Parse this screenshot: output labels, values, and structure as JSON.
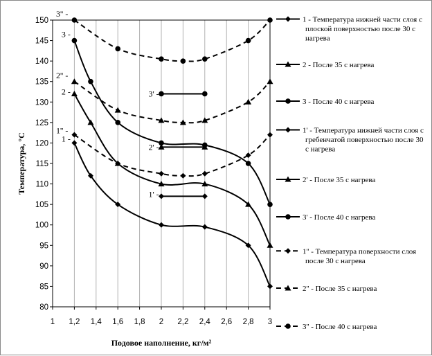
{
  "chart_data": {
    "type": "line",
    "xlabel": "Подовое наполнение, кг/м²",
    "ylabel": "Температура, °С",
    "xlim": [
      1,
      3
    ],
    "ylim": [
      80,
      150
    ],
    "x_ticks": [
      "1",
      "1,2",
      "1,4",
      "1,6",
      "1,8",
      "2",
      "2,2",
      "2,4",
      "2,6",
      "2,8",
      "3"
    ],
    "y_ticks": [
      "80",
      "85",
      "90",
      "95",
      "100",
      "105",
      "110",
      "115",
      "120",
      "125",
      "130",
      "135",
      "140",
      "145",
      "150"
    ],
    "grid": "vertical",
    "legend_position": "right",
    "series": [
      {
        "name": "1 - Температура нижней части слоя с плоской поверхностью после 30 с нагрева",
        "style": "solid",
        "marker": "diamond",
        "x": [
          1.2,
          1.35,
          1.6,
          2.0,
          2.4,
          2.8,
          3.0
        ],
        "y": [
          120,
          112,
          105,
          100,
          99.5,
          95,
          85
        ]
      },
      {
        "name": "2 - После 35 с нагрева",
        "style": "solid",
        "marker": "triangle",
        "x": [
          1.2,
          1.35,
          1.6,
          2.0,
          2.4,
          2.8,
          3.0
        ],
        "y": [
          132,
          125,
          115,
          110,
          110,
          105,
          95
        ]
      },
      {
        "name": "3 - После 40 с нагрева",
        "style": "solid",
        "marker": "circle",
        "x": [
          1.2,
          1.35,
          1.6,
          2.0,
          2.4,
          2.8,
          3.0
        ],
        "y": [
          145,
          135,
          125,
          120,
          119.5,
          115,
          105
        ]
      },
      {
        "name": "1' - Температура нижней части слоя с гребенчатой поверхностью после 30 с нагрева",
        "style": "solid",
        "marker": "diamond",
        "x": [
          2.0,
          2.4
        ],
        "y": [
          107,
          107
        ]
      },
      {
        "name": "2' - После 35 с нагрева",
        "style": "solid",
        "marker": "triangle",
        "x": [
          2.0,
          2.4
        ],
        "y": [
          119,
          119
        ]
      },
      {
        "name": "3' - После 40 с нагрева",
        "style": "solid",
        "marker": "circle",
        "x": [
          2.0,
          2.4
        ],
        "y": [
          132,
          132
        ]
      },
      {
        "name": "1'' - Температура поверхности слоя после 30 с нагрева",
        "style": "dashed",
        "marker": "diamond",
        "x": [
          1.2,
          1.6,
          2.0,
          2.2,
          2.4,
          2.8,
          3.0
        ],
        "y": [
          122,
          115,
          112.5,
          112,
          112.5,
          117,
          122
        ]
      },
      {
        "name": "2'' - После 35 с нагрева",
        "style": "dashed",
        "marker": "triangle",
        "x": [
          1.2,
          1.6,
          2.0,
          2.2,
          2.4,
          2.8,
          3.0
        ],
        "y": [
          135,
          128,
          125.5,
          125,
          125.5,
          130,
          135
        ]
      },
      {
        "name": "3'' - После 40 с нагрева",
        "style": "dashed",
        "marker": "circle",
        "x": [
          1.2,
          1.6,
          2.0,
          2.2,
          2.4,
          2.8,
          3.0
        ],
        "y": [
          150,
          143,
          140.5,
          140,
          140.5,
          145,
          150
        ]
      }
    ],
    "annotations": [
      {
        "text": "3'' -",
        "x": 1.0,
        "y": 151.5
      },
      {
        "text": "3 -",
        "x": 1.05,
        "y": 146.5
      },
      {
        "text": "2'' -",
        "x": 1.0,
        "y": 136.5
      },
      {
        "text": "2 -",
        "x": 1.05,
        "y": 132.5
      },
      {
        "text": "1'' -",
        "x": 1.0,
        "y": 123
      },
      {
        "text": "1 -",
        "x": 1.05,
        "y": 121
      },
      {
        "text": "3' -",
        "x": 1.85,
        "y": 132
      },
      {
        "text": "2' -",
        "x": 1.85,
        "y": 119
      },
      {
        "text": "1' -",
        "x": 1.85,
        "y": 107.5
      }
    ]
  }
}
